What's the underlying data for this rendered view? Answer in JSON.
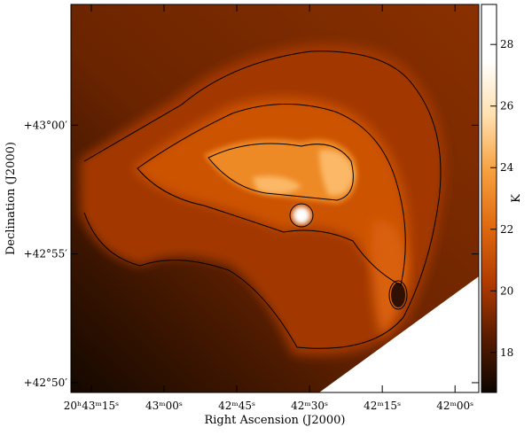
{
  "chart_data": {
    "type": "image",
    "x_label": "Right Ascension (J2000)",
    "y_label": "Declination (J2000)",
    "xlim": [
      74599.2,
      74515.1
    ],
    "xticks": [
      {
        "value": 74595,
        "label": "20ʰ43ᵐ15ˢ"
      },
      {
        "value": 74580,
        "label": "43ᵐ00ˢ"
      },
      {
        "value": 74565,
        "label": "42ᵐ45ˢ"
      },
      {
        "value": 74550,
        "label": "42ᵐ30ˢ"
      },
      {
        "value": 74535,
        "label": "42ᵐ15ˢ"
      },
      {
        "value": 74520,
        "label": "42ᵐ00ˢ"
      }
    ],
    "ylim": [
      2569.62,
      2584.69
    ],
    "yticks": [
      {
        "value": 2580,
        "label": "+43°00′"
      },
      {
        "value": 2575,
        "label": "+42°55′"
      },
      {
        "value": 2570,
        "label": "+42°50′"
      }
    ],
    "colorbar": {
      "label": "K",
      "clim": [
        16.7,
        29.3
      ],
      "ticks": [
        18,
        20,
        22,
        24,
        26,
        28
      ],
      "colormap": [
        "#0d0500",
        "#5a1c00",
        "#b23c00",
        "#e06a10",
        "#f7a040",
        "#ffe0b0",
        "#ffffff",
        "#ffffff"
      ]
    }
  }
}
